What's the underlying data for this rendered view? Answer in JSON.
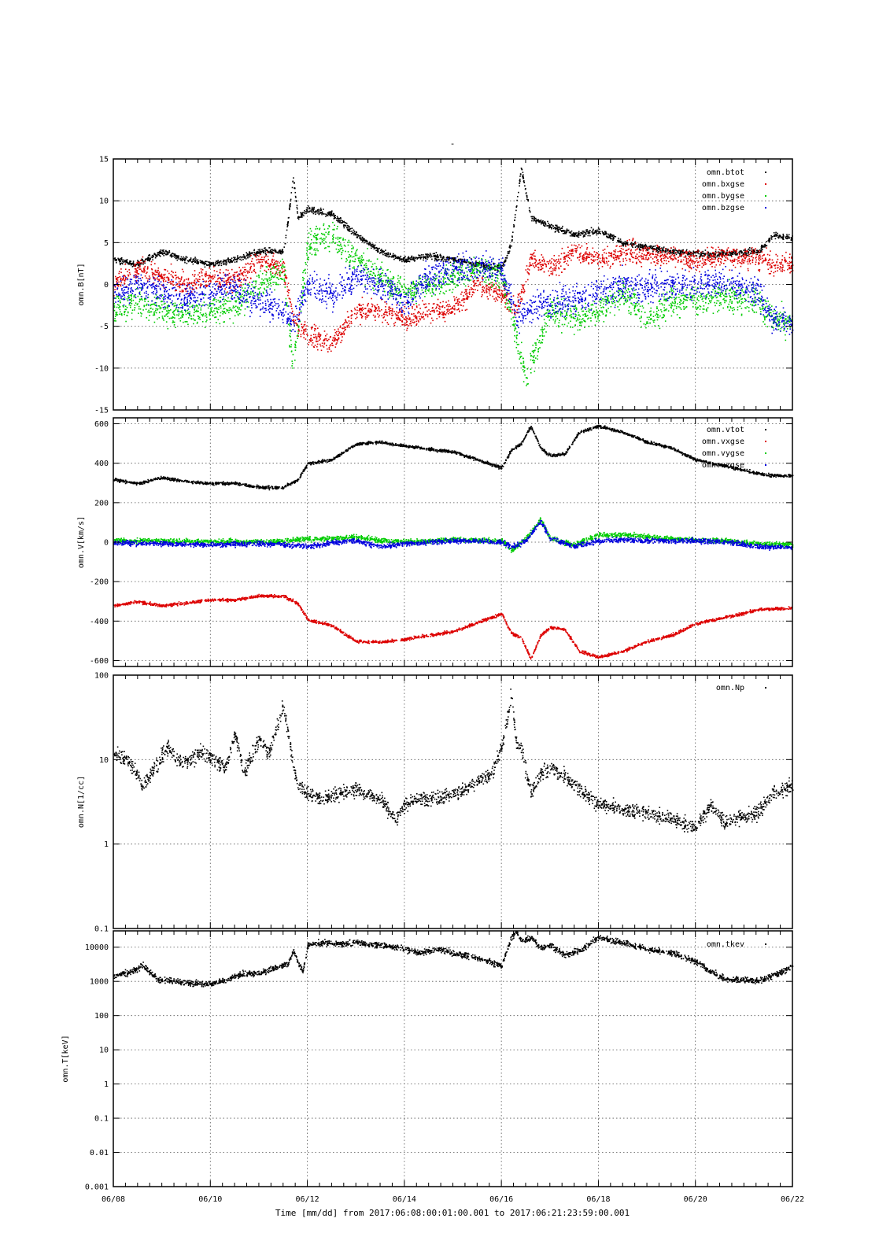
{
  "title": "-",
  "x_axis": {
    "label": "Time [mm/dd]  from 2017:06:08:00:01:00.001  to  2017:06:21:23:59:00.001",
    "range_days": [
      0,
      14
    ],
    "tick_labels": [
      "06/08",
      "06/10",
      "06/12",
      "06/14",
      "06/16",
      "06/18",
      "06/20",
      "06/22"
    ],
    "tick_values": [
      0,
      2,
      4,
      6,
      8,
      10,
      12,
      14
    ]
  },
  "colors": {
    "black": "#000000",
    "red": "#dd0000",
    "green": "#00cc00",
    "blue": "#0000dd"
  },
  "chart_data": [
    {
      "type": "scatter",
      "ylabel": "omn.B[nT]",
      "ylim": [
        -15,
        15
      ],
      "scale": "linear",
      "grid": true,
      "legend_position": "top-right",
      "y_tick_labels": [
        "15",
        "10",
        "5",
        "0",
        "-5",
        "-10",
        "-15"
      ],
      "y_tick_values": [
        15,
        10,
        5,
        0,
        -5,
        -10,
        -15
      ],
      "series": [
        {
          "name": "omn.btot",
          "color": "#000000",
          "noise": 0.35,
          "x": [
            0,
            0.5,
            1,
            1.5,
            2,
            2.5,
            3,
            3.5,
            3.6,
            3.7,
            3.8,
            4,
            4.5,
            5,
            5.5,
            6,
            6.5,
            7,
            7.5,
            8,
            8.2,
            8.4,
            8.6,
            9,
            9.5,
            10,
            10.5,
            11,
            11.5,
            12,
            12.3,
            12.6,
            13.3,
            13.6,
            14
          ],
          "y": [
            3,
            2.5,
            4,
            3,
            2.5,
            3,
            4,
            4,
            8,
            13,
            8,
            9,
            8.5,
            6,
            4,
            3,
            3.5,
            3,
            2.5,
            2,
            5,
            14,
            8,
            7,
            6,
            6.5,
            5,
            4.5,
            4,
            3.8,
            3.6,
            3.8,
            4,
            6,
            5.5
          ]
        },
        {
          "name": "omn.bxgse",
          "color": "#dd0000",
          "noise": 1.2,
          "x": [
            0,
            0.5,
            1,
            1.5,
            2,
            2.5,
            3,
            3.5,
            3.7,
            4,
            4.5,
            5,
            5.5,
            6,
            6.5,
            7,
            7.5,
            8,
            8.3,
            8.6,
            9,
            9.5,
            10,
            10.5,
            11,
            11.5,
            12,
            12.6,
            13.3,
            13.6,
            14
          ],
          "y": [
            0,
            2,
            1,
            0,
            1,
            0.5,
            3,
            2,
            -4,
            -6,
            -7,
            -3,
            -3,
            -4,
            -3,
            -3,
            0,
            -1,
            -3,
            3,
            2,
            4,
            3,
            4,
            3.5,
            3.5,
            3,
            3.5,
            3,
            2.5,
            2.5
          ]
        },
        {
          "name": "omn.bygse",
          "color": "#00cc00",
          "noise": 1.6,
          "x": [
            0,
            0.5,
            1,
            1.5,
            2,
            2.5,
            3,
            3.5,
            3.7,
            4,
            4.5,
            5,
            5.5,
            6,
            6.5,
            7,
            7.5,
            8,
            8.3,
            8.5,
            9,
            9.5,
            10,
            10.5,
            11,
            11.5,
            12,
            12.6,
            13.3,
            13.6,
            14
          ],
          "y": [
            -3,
            -2,
            -3,
            -3.5,
            -3,
            -2.5,
            0,
            2,
            -10,
            5,
            6,
            3,
            1,
            -1,
            0,
            1,
            2,
            1,
            -6,
            -11,
            -3,
            -4,
            -3,
            -1,
            -4,
            -2,
            -2,
            -1.5,
            -2,
            -4,
            -4.5
          ]
        },
        {
          "name": "omn.bzgse",
          "color": "#0000dd",
          "noise": 1.6,
          "x": [
            0,
            0.5,
            1,
            1.5,
            2,
            2.5,
            3,
            3.5,
            3.7,
            4,
            4.5,
            5,
            5.5,
            6,
            6.5,
            7,
            7.5,
            8,
            8.3,
            8.5,
            9,
            9.5,
            10,
            10.5,
            11,
            11.5,
            12,
            12.6,
            13.3,
            13.6,
            14
          ],
          "y": [
            -1,
            0,
            -1,
            -1.5,
            -1,
            0,
            -2,
            -3,
            -5,
            0,
            -1,
            1,
            0,
            -2,
            1,
            2,
            2,
            2,
            -4,
            -3,
            -2,
            -2,
            -1,
            0,
            -0.5,
            0,
            0,
            0.5,
            -1,
            -4,
            -4.5
          ]
        }
      ]
    },
    {
      "type": "scatter",
      "ylabel": "omn.V[km/s]",
      "ylim": [
        -630,
        630
      ],
      "scale": "linear",
      "grid": true,
      "legend_position": "top-right",
      "y_tick_labels": [
        "600",
        "400",
        "200",
        "0",
        "-200",
        "-400",
        "-600"
      ],
      "y_tick_values": [
        600,
        400,
        200,
        0,
        -200,
        -400,
        -600
      ],
      "series": [
        {
          "name": "omn.vtot",
          "color": "#000000",
          "noise": 7,
          "x": [
            0,
            0.5,
            1,
            1.5,
            2,
            2.5,
            3,
            3.5,
            3.8,
            4,
            4.5,
            5,
            5.5,
            6,
            7,
            8,
            8.2,
            8.4,
            8.6,
            8.8,
            9,
            9.3,
            9.6,
            10,
            10.5,
            11,
            11.5,
            12,
            12.6,
            13.3,
            13.6,
            14
          ],
          "y": [
            320,
            300,
            330,
            310,
            300,
            300,
            280,
            280,
            320,
            400,
            420,
            500,
            510,
            490,
            460,
            380,
            470,
            500,
            590,
            480,
            440,
            450,
            560,
            590,
            560,
            510,
            480,
            420,
            390,
            350,
            340,
            340
          ]
        },
        {
          "name": "omn.vxgse",
          "color": "#dd0000",
          "noise": 7,
          "x": [
            0,
            0.5,
            1,
            1.5,
            2,
            2.5,
            3,
            3.5,
            3.8,
            4,
            4.5,
            5,
            5.5,
            6,
            7,
            8,
            8.2,
            8.4,
            8.6,
            8.8,
            9,
            9.3,
            9.6,
            10,
            10.5,
            11,
            11.5,
            12,
            12.6,
            13.3,
            13.6,
            14
          ],
          "y": [
            -320,
            -300,
            -320,
            -305,
            -290,
            -290,
            -270,
            -270,
            -310,
            -390,
            -420,
            -500,
            -505,
            -490,
            -450,
            -360,
            -460,
            -480,
            -590,
            -470,
            -430,
            -440,
            -550,
            -580,
            -550,
            -500,
            -470,
            -410,
            -380,
            -340,
            -335,
            -330
          ]
        },
        {
          "name": "omn.vygse",
          "color": "#00cc00",
          "noise": 12,
          "x": [
            0,
            1,
            2,
            3,
            3.5,
            4,
            4.5,
            5,
            5.5,
            6,
            7,
            8,
            8.2,
            8.5,
            8.8,
            9,
            9.5,
            10,
            10.5,
            11,
            11.5,
            12,
            12.6,
            13.3,
            14
          ],
          "y": [
            10,
            10,
            5,
            5,
            10,
            20,
            20,
            30,
            10,
            5,
            15,
            10,
            -40,
            20,
            120,
            20,
            -10,
            40,
            40,
            30,
            20,
            15,
            10,
            -5,
            -10
          ]
        },
        {
          "name": "omn.vzgse",
          "color": "#0000dd",
          "noise": 12,
          "x": [
            0,
            1,
            2,
            3,
            3.5,
            4,
            4.5,
            5,
            5.5,
            6,
            7,
            8,
            8.2,
            8.5,
            8.8,
            9,
            9.5,
            10,
            10.5,
            11,
            11.5,
            12,
            12.6,
            13.3,
            14
          ],
          "y": [
            0,
            -5,
            -10,
            -5,
            -10,
            -20,
            0,
            10,
            -20,
            -5,
            10,
            5,
            -20,
            10,
            110,
            20,
            -20,
            10,
            15,
            10,
            10,
            10,
            5,
            -20,
            -25
          ]
        }
      ]
    },
    {
      "type": "scatter",
      "ylabel": "omn.N[1/cc]",
      "ylim": [
        0.1,
        100
      ],
      "scale": "log",
      "grid": true,
      "legend_position": "top-right",
      "y_tick_labels": [
        "100",
        "10",
        "1",
        "0.1"
      ],
      "y_tick_values": [
        100,
        10,
        1,
        0.1
      ],
      "series": [
        {
          "name": "omn.Np",
          "color": "#000000",
          "noise": 0.08,
          "x": [
            0,
            0.3,
            0.6,
            0.9,
            1.1,
            1.4,
            1.8,
            2,
            2.3,
            2.5,
            2.7,
            3,
            3.2,
            3.5,
            3.6,
            3.7,
            3.8,
            4,
            4.3,
            4.6,
            5,
            5.5,
            5.8,
            6,
            6.3,
            6.7,
            7,
            7.4,
            7.8,
            8,
            8.2,
            8.3,
            8.4,
            8.6,
            8.8,
            9,
            9.2,
            9.5,
            10,
            10.5,
            11,
            11.5,
            12,
            12.3,
            12.6,
            13.3,
            13.6,
            14
          ],
          "y": [
            12,
            10,
            5,
            9,
            14,
            9,
            12,
            11,
            8,
            20,
            7,
            18,
            12,
            45,
            20,
            9,
            5,
            4,
            3.5,
            4,
            4.5,
            3.5,
            2,
            3,
            3.5,
            3.6,
            4,
            5,
            7,
            14,
            60,
            15,
            14,
            4,
            7,
            8,
            7,
            5,
            3,
            2.6,
            2.4,
            2,
            1.6,
            3,
            1.8,
            2.5,
            4,
            5
          ]
        }
      ]
    },
    {
      "type": "scatter",
      "ylabel": "omn.T[keV]",
      "ylim": [
        0.001,
        30000
      ],
      "scale": "log",
      "grid": true,
      "legend_position": "top-right",
      "y_tick_labels": [
        "10000",
        "1000",
        "100",
        "10",
        "1",
        "0.1",
        "0.01",
        "0.001"
      ],
      "y_tick_values": [
        10000,
        1000,
        100,
        10,
        1,
        0.1,
        0.01,
        0.001
      ],
      "series": [
        {
          "name": "omn.tkev",
          "color": "#000000",
          "noise": 0.08,
          "x": [
            0,
            0.3,
            0.6,
            0.9,
            1.2,
            1.6,
            2,
            2.3,
            2.6,
            3,
            3.3,
            3.6,
            3.7,
            3.9,
            4,
            4.3,
            4.6,
            5,
            5.5,
            6,
            6.3,
            6.7,
            7,
            7.5,
            8,
            8.2,
            8.3,
            8.4,
            8.6,
            8.8,
            9,
            9.3,
            9.6,
            10,
            10.5,
            11,
            11.5,
            12,
            12.3,
            12.6,
            13.3,
            13.6,
            14
          ],
          "y": [
            1500,
            1800,
            3000,
            1200,
            1100,
            900,
            900,
            1100,
            1700,
            1800,
            2500,
            3500,
            8000,
            2000,
            12000,
            14000,
            13000,
            14000,
            12000,
            9000,
            7000,
            9000,
            7000,
            5000,
            3000,
            20000,
            30000,
            15000,
            20000,
            10000,
            12000,
            6000,
            8000,
            20000,
            14000,
            9000,
            7000,
            4000,
            2000,
            1200,
            1100,
            1500,
            3000
          ]
        }
      ]
    }
  ]
}
